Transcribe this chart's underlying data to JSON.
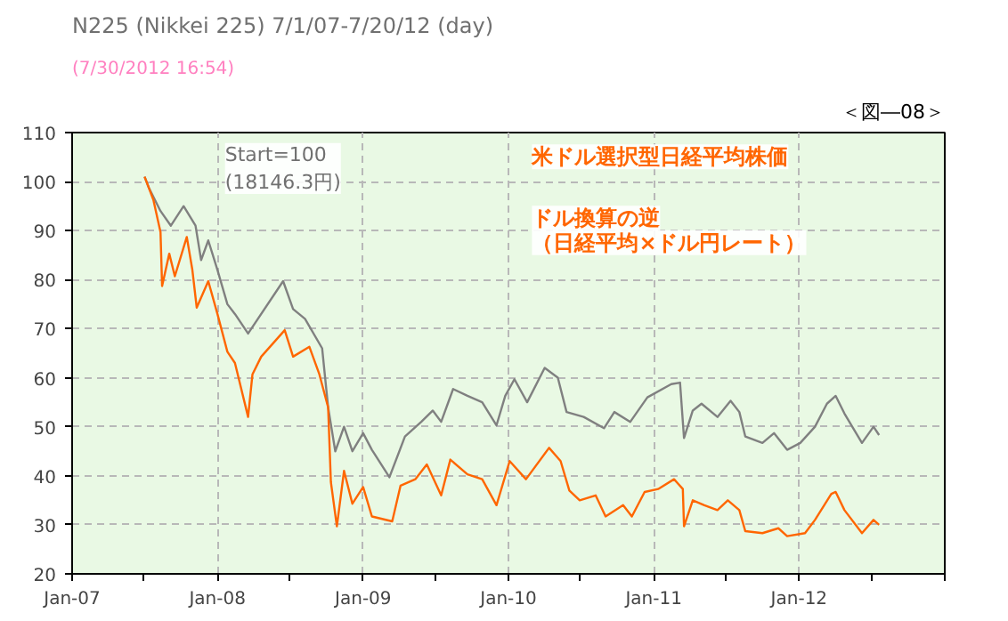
{
  "chart_data": {
    "type": "line",
    "title": "N225 (Nikkei 225)  7/1/07-7/20/12 (day)",
    "annotations": [
      "(7/30/2012 16:54)",
      "＜図―08＞",
      "Start=100\n(18146.3円)",
      "ドル換算の逆",
      "（日経平均×ドル円レート）"
    ],
    "xlim": [
      "2007-01-01",
      "2013-01-01"
    ],
    "ylim": [
      20,
      110
    ],
    "xticks": [
      {
        "value": "2007-01",
        "label": "Jan-07"
      },
      {
        "value": "2007-07",
        "label": null
      },
      {
        "value": "2008-01",
        "label": "Jan-08"
      },
      {
        "value": "2008-07",
        "label": null
      },
      {
        "value": "2009-01",
        "label": "Jan-09"
      },
      {
        "value": "2009-07",
        "label": null
      },
      {
        "value": "2010-01",
        "label": "Jan-10"
      },
      {
        "value": "2010-07",
        "label": null
      },
      {
        "value": "2011-01",
        "label": "Jan-11"
      },
      {
        "value": "2011-07",
        "label": null
      },
      {
        "value": "2012-01",
        "label": "Jan-12"
      },
      {
        "value": "2012-07",
        "label": null
      },
      {
        "value": "2013-01",
        "label": null
      }
    ],
    "yticks": [
      20,
      30,
      40,
      50,
      60,
      70,
      80,
      90,
      100,
      110
    ],
    "grid": true,
    "line_style": "solid",
    "series": [
      {
        "color": "#808080",
        "x": [
          "2007-07-02",
          "2007-07-13",
          "2007-08-11",
          "2007-09-06",
          "2007-10-08",
          "2007-11-07",
          "2007-11-21",
          "2007-12-09",
          "2008-01-01",
          "2008-01-26",
          "2008-02-14",
          "2008-03-18",
          "2008-06-14",
          "2008-07-09",
          "2008-08-08",
          "2008-09-20",
          "2008-10-05",
          "2008-10-23",
          "2008-11-14",
          "2008-12-05",
          "2009-01-01",
          "2009-01-23",
          "2009-03-08",
          "2009-04-16",
          "2009-05-27",
          "2009-06-25",
          "2009-07-16",
          "2009-08-15",
          "2009-09-20",
          "2009-10-27",
          "2009-12-02",
          "2009-12-24",
          "2010-01-16",
          "2010-02-17",
          "2010-04-02",
          "2010-05-05",
          "2010-05-27",
          "2010-07-09",
          "2010-08-29",
          "2010-09-24",
          "2010-11-03",
          "2010-12-16",
          "2011-02-14",
          "2011-03-08",
          "2011-03-18",
          "2011-04-09",
          "2011-05-01",
          "2011-06-10",
          "2011-07-13",
          "2011-08-04",
          "2011-08-19",
          "2011-10-01",
          "2011-10-30",
          "2011-12-02",
          "2012-01-04",
          "2012-02-10",
          "2012-03-11",
          "2012-04-02",
          "2012-04-24",
          "2012-06-07",
          "2012-07-06",
          "2012-07-20"
        ],
        "values": [
          101,
          98.7,
          94,
          91,
          95,
          91,
          84,
          88,
          82,
          75,
          73,
          69,
          79.7,
          74,
          72,
          66,
          54,
          45,
          50,
          45,
          48.7,
          45.3,
          39.7,
          48,
          51,
          53.3,
          51,
          57.7,
          56.3,
          55,
          50.3,
          56.3,
          59.7,
          55,
          62,
          60,
          53,
          52,
          49.7,
          53,
          51,
          56,
          58.7,
          59,
          47.7,
          53.3,
          54.7,
          52,
          55.3,
          53,
          48,
          46.7,
          48.7,
          45.3,
          46.7,
          50,
          54.7,
          56.3,
          52.7,
          46.7,
          50,
          48.3
        ]
      },
      {
        "name": "米ドル選択型日経平均株価",
        "color": "#ff6600",
        "x": [
          "2007-07-02",
          "2007-07-24",
          "2007-08-11",
          "2007-08-15",
          "2007-09-02",
          "2007-09-16",
          "2007-10-16",
          "2007-10-30",
          "2007-11-10",
          "2007-12-09",
          "2008-01-01",
          "2008-01-26",
          "2008-02-14",
          "2008-03-18",
          "2008-03-29",
          "2008-04-20",
          "2008-06-18",
          "2008-07-09",
          "2008-08-19",
          "2008-09-13",
          "2008-10-05",
          "2008-10-12",
          "2008-10-27",
          "2008-11-14",
          "2008-12-05",
          "2009-01-01",
          "2009-01-23",
          "2009-03-15",
          "2009-04-05",
          "2009-05-12",
          "2009-06-10",
          "2009-07-16",
          "2009-08-08",
          "2009-09-20",
          "2009-10-27",
          "2009-12-02",
          "2010-01-04",
          "2010-02-14",
          "2010-04-13",
          "2010-05-12",
          "2010-06-03",
          "2010-06-29",
          "2010-08-08",
          "2010-09-02",
          "2010-10-16",
          "2010-11-07",
          "2010-12-09",
          "2011-01-12",
          "2011-02-21",
          "2011-03-15",
          "2011-03-18",
          "2011-04-09",
          "2011-05-08",
          "2011-06-10",
          "2011-07-06",
          "2011-08-04",
          "2011-08-19",
          "2011-10-01",
          "2011-11-10",
          "2011-12-02",
          "2012-01-16",
          "2012-02-10",
          "2012-03-22",
          "2012-04-02",
          "2012-04-24",
          "2012-06-07",
          "2012-07-06",
          "2012-07-20"
        ],
        "values": [
          101,
          96.3,
          89.7,
          78.7,
          85.3,
          80.7,
          88.7,
          82,
          74.3,
          79.7,
          73,
          65.3,
          63,
          52,
          60.7,
          64.3,
          69.7,
          64.3,
          66.3,
          60.7,
          54,
          38.7,
          29.7,
          41,
          34.3,
          37.7,
          31.7,
          30.7,
          38,
          39.3,
          42.3,
          36,
          43.3,
          40.3,
          39.3,
          34,
          43,
          39.3,
          45.7,
          43,
          37,
          35,
          36,
          31.7,
          34,
          31.7,
          36.7,
          37.3,
          39.3,
          37.3,
          29.7,
          35,
          34,
          33,
          35,
          33,
          28.7,
          28.3,
          29.3,
          27.7,
          28.3,
          31,
          36.3,
          36.7,
          33,
          28.3,
          31,
          30
        ]
      }
    ]
  }
}
